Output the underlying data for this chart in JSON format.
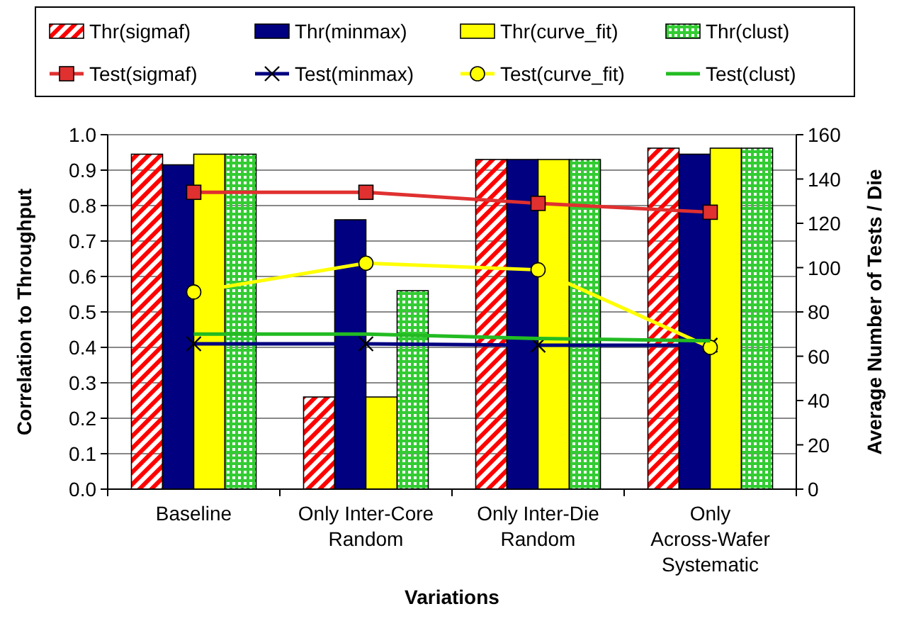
{
  "chart_data": {
    "type": "bar",
    "xlabel": "Variations",
    "ylabel": "Correlation to Throughput",
    "y2label": "Average Number of Tests / Die",
    "categories": [
      "Baseline",
      "Only Inter-Core Random",
      "Only Inter-Die Random",
      "Only Across-Wafer Systematic"
    ],
    "series": [
      {
        "name": "Thr(sigmaf)",
        "color": "#ff0000",
        "values": [
          0.945,
          0.26,
          0.93,
          0.962
        ]
      },
      {
        "name": "Thr(minmax)",
        "color": "#000080",
        "values": [
          0.915,
          0.76,
          0.93,
          0.945
        ]
      },
      {
        "name": "Thr(curve_fit)",
        "color": "#ffff00",
        "values": [
          0.945,
          0.26,
          0.93,
          0.962
        ]
      },
      {
        "name": "Thr(clust)",
        "color": "#33cc33",
        "values": [
          0.945,
          0.56,
          0.93,
          0.962
        ]
      },
      {
        "name": "Test(sigmaf)",
        "type": "line",
        "axis": "y2",
        "marker": "square",
        "color": "#e03030",
        "values": [
          134,
          134,
          129,
          125
        ]
      },
      {
        "name": "Test(minmax)",
        "type": "line",
        "axis": "y2",
        "marker": "cross",
        "color": "#000080",
        "values": [
          65.6,
          65.6,
          65,
          65
        ]
      },
      {
        "name": "Test(curve_fit)",
        "type": "line",
        "axis": "y2",
        "marker": "circle",
        "color": "#ffff00",
        "values": [
          89,
          102,
          99,
          64
        ]
      },
      {
        "name": "Test(clust)",
        "type": "line",
        "axis": "y2",
        "marker": "none",
        "color": "#22bb22",
        "values": [
          70,
          70,
          68,
          67
        ]
      }
    ],
    "ylim": [
      0,
      1
    ],
    "yticks": [
      {
        "value": 0,
        "label": "0.0"
      },
      0.1,
      0.2,
      0.3,
      0.4,
      0.5,
      0.6,
      0.7,
      0.8,
      0.9,
      {
        "value": 1,
        "label": "1.0"
      }
    ],
    "y2lim": [
      0,
      160
    ],
    "y2ticks": [
      0,
      20,
      40,
      60,
      80,
      100,
      120,
      140,
      160
    ],
    "grid": "y",
    "legend": "top"
  }
}
